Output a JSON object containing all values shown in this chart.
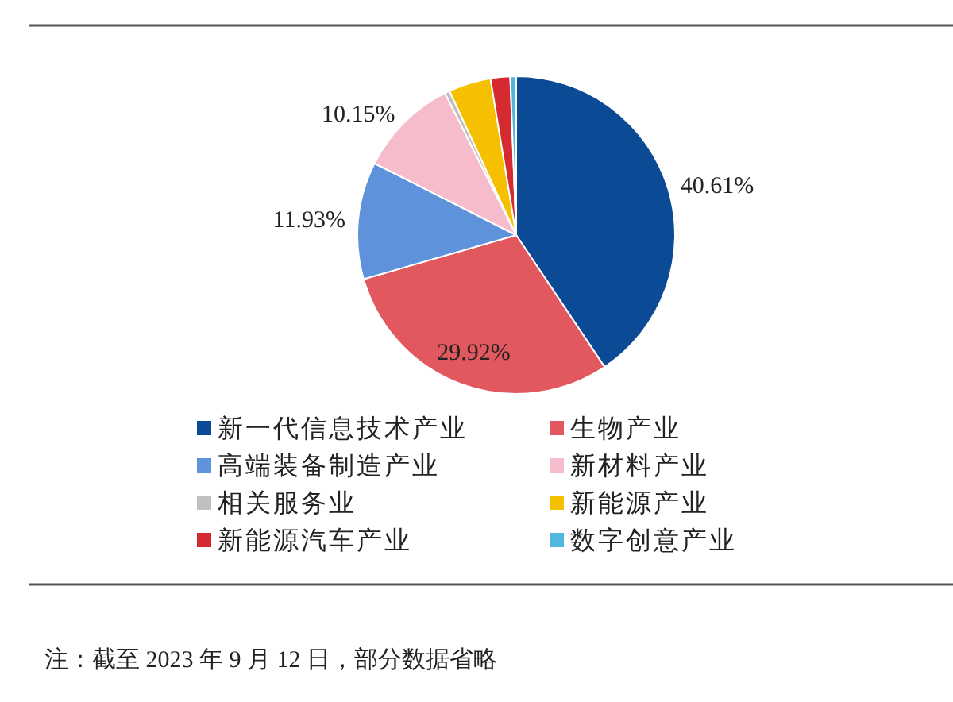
{
  "chart_data": {
    "type": "pie",
    "categories": [
      "新一代信息技术产业",
      "生物产业",
      "高端装备制造产业",
      "新材料产业",
      "相关服务业",
      "新能源产业",
      "新能源汽车产业",
      "数字创意产业"
    ],
    "values": [
      40.61,
      29.92,
      11.93,
      10.15,
      0.5,
      4.3,
      2.0,
      0.6
    ],
    "colors": [
      "#0b4a94",
      "#e2585f",
      "#5e93dc",
      "#f6bccb",
      "#bfbfbf",
      "#f5c000",
      "#d42a30",
      "#4fb8dc"
    ],
    "value_labels": [
      "40.61%",
      "29.92%",
      "11.93%",
      "10.15%",
      null,
      null,
      null,
      null
    ],
    "legend": "bottom",
    "annotations": [
      "注：截至 2023 年 9 月 12 日，部分数据省略"
    ]
  }
}
